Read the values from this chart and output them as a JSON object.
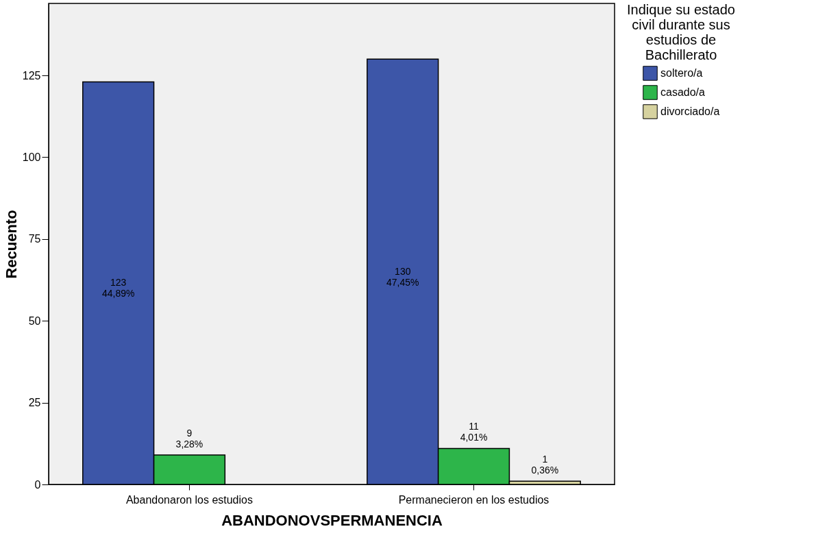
{
  "chart_data": {
    "type": "bar",
    "xlabel": "ABANDONOVSPERMANENCIA",
    "ylabel": "Recuento",
    "legend_title": "Indique su estado civil durante sus estudios de Bachillerato",
    "categories": [
      "Abandonaron los estudios",
      "Permanecieron en los estudios"
    ],
    "series": [
      {
        "name": "soltero/a",
        "color": "#3d56a8",
        "values": [
          123,
          130
        ],
        "value_labels": [
          "123\n44,89%",
          "130\n47,45%"
        ]
      },
      {
        "name": "casado/a",
        "color": "#2db54a",
        "values": [
          9,
          11
        ],
        "value_labels": [
          "9\n3,28%",
          "11\n4,01%"
        ]
      },
      {
        "name": "divorciado/a",
        "color": "#d6d29f",
        "values": [
          null,
          1
        ],
        "value_labels": [
          null,
          "1\n0,36%"
        ]
      }
    ],
    "ylim": [
      0,
      147
    ],
    "yticks": [
      0,
      25,
      50,
      75,
      100,
      125
    ],
    "grid": false,
    "legend": "top right"
  }
}
